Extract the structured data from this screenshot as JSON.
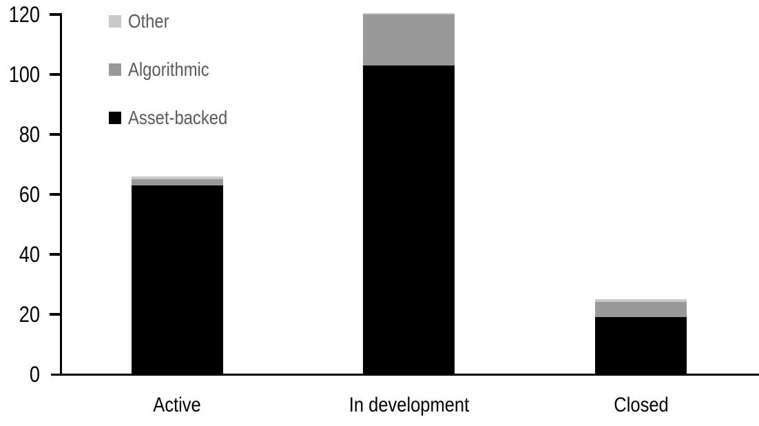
{
  "chart_data": {
    "type": "bar",
    "stacked": true,
    "title": "",
    "xlabel": "",
    "ylabel": "",
    "categories": [
      "Active",
      "In development",
      "Closed"
    ],
    "series": [
      {
        "name": "Asset-backed",
        "color": "#000000",
        "values": [
          63,
          103,
          19
        ]
      },
      {
        "name": "Algorithmic",
        "color": "#999999",
        "values": [
          2,
          17,
          5
        ]
      },
      {
        "name": "Other",
        "color": "#C9C9C9",
        "values": [
          1,
          0.5,
          1
        ]
      }
    ],
    "totals": [
      66,
      120.5,
      25
    ],
    "ylim": [
      0,
      120
    ],
    "yticks": [
      0,
      20,
      40,
      60,
      80,
      100,
      120
    ],
    "grid": false,
    "legend_position": "top-left",
    "legend_order": [
      "Other",
      "Algorithmic",
      "Asset-backed"
    ],
    "colors": {
      "axis": "#000000",
      "tick_label": "#000000",
      "legend_text": "#595959",
      "background": "#ffffff"
    }
  }
}
